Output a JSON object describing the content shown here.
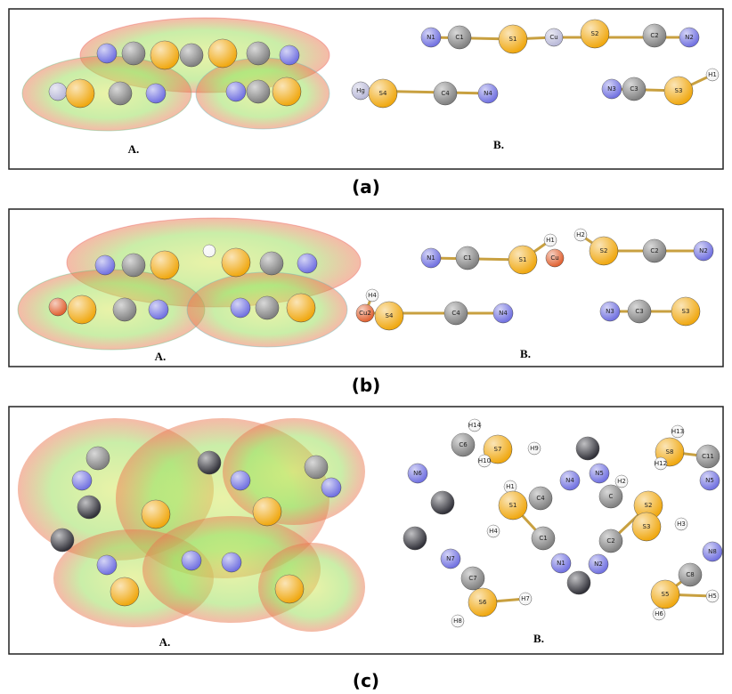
{
  "panels": [
    {
      "caption": "(a)",
      "label_a": "A.",
      "label_b": "B.",
      "atoms": [
        "N1",
        "C1",
        "S1",
        "Cu",
        "S2",
        "C2",
        "N2",
        "Hg",
        "S4",
        "C4",
        "N4",
        "N3",
        "C3",
        "S3",
        "H1"
      ]
    },
    {
      "caption": "(b)",
      "label_a": "A.",
      "label_b": "B.",
      "atoms": [
        "N1",
        "C1",
        "S1",
        "H1",
        "Cu",
        "H2",
        "S2",
        "C2",
        "N2",
        "H4",
        "Cu2",
        "S4",
        "C4",
        "N4",
        "N3",
        "C3",
        "S3"
      ]
    },
    {
      "caption": "(c)",
      "label_a": "A.",
      "label_b": "B.",
      "atoms": [
        "H14",
        "C6",
        "S7",
        "H9",
        "H10",
        "N6",
        "N5",
        "N4",
        "H1",
        "C4",
        "S1",
        "H4",
        "C1",
        "N1",
        "N2",
        "C2",
        "S2",
        "S3",
        "H3",
        "H2",
        "C",
        "H13",
        "S8",
        "H12",
        "C11",
        "N5",
        "N7",
        "C7",
        "S6",
        "H7",
        "H8",
        "N8",
        "C8",
        "S5",
        "H5",
        "H6"
      ]
    }
  ]
}
